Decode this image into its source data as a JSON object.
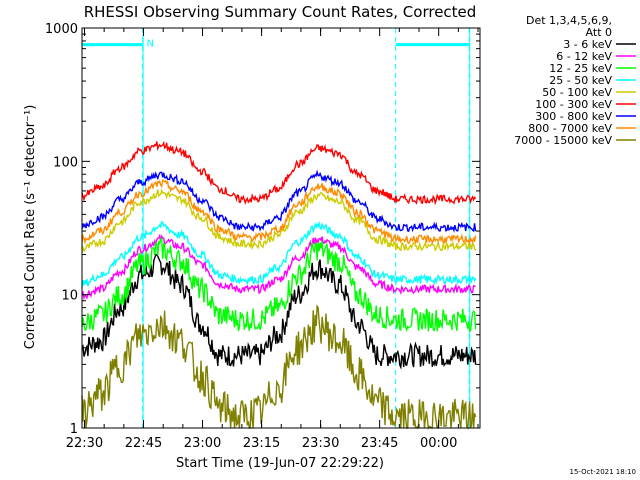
{
  "chart_data": {
    "type": "line",
    "title": "RHESSI Observing Summary Count Rates, Corrected",
    "xlabel": "Start Time (19-Jun-07 22:29:22)",
    "ylabel": "Corrected Count Rate (s⁻¹ detector⁻¹)",
    "y_scale": "log",
    "ylim": [
      1,
      1000
    ],
    "xlim": [
      "22:29:22",
      "00:10:30"
    ],
    "x_tick_labels": [
      "22:30",
      "22:45",
      "23:00",
      "23:15",
      "23:30",
      "23:45",
      "00:00"
    ],
    "x_tick_minutes": [
      0.63,
      15.63,
      30.63,
      45.63,
      60.63,
      75.63,
      90.63
    ],
    "y_tick_labels": [
      "1",
      "10",
      "100",
      "1000"
    ],
    "y_tick_values": [
      1,
      10,
      100,
      1000
    ],
    "legend_header": [
      "Det 1,3,4,5,6,9,",
      "Att 0"
    ],
    "legend_position": "right",
    "time_step_min": 5,
    "series": [
      {
        "name": "3 - 6 keV",
        "color": "#000000",
        "times": [
          0,
          5,
          10,
          15,
          20,
          25,
          30,
          35,
          40,
          45,
          50,
          55,
          60,
          65,
          70,
          75,
          80,
          85,
          90,
          95,
          100
        ],
        "values": [
          4,
          4.5,
          8,
          14,
          17,
          12,
          6,
          3.5,
          3.5,
          3.5,
          5,
          10,
          16,
          12,
          6,
          3.5,
          3.5,
          3.5,
          3.5,
          3.5,
          3.5
        ]
      },
      {
        "name": "6 - 12 keV",
        "color": "#ff00ff",
        "times": [
          0,
          5,
          10,
          15,
          20,
          25,
          30,
          35,
          40,
          45,
          50,
          55,
          60,
          65,
          70,
          75,
          80,
          85,
          90,
          95,
          100
        ],
        "values": [
          10,
          11,
          15,
          22,
          26,
          23,
          17,
          12,
          11,
          11,
          13,
          19,
          26,
          23,
          16,
          12,
          11,
          11,
          11,
          11,
          11
        ]
      },
      {
        "name": "12 - 25 keV",
        "color": "#00ff00",
        "times": [
          0,
          5,
          10,
          15,
          20,
          25,
          30,
          35,
          40,
          45,
          50,
          55,
          60,
          65,
          70,
          75,
          80,
          85,
          90,
          95,
          100
        ],
        "values": [
          6,
          7,
          10,
          17,
          22,
          18,
          11,
          7,
          6.5,
          6.5,
          8,
          14,
          22,
          18,
          10,
          7,
          6.5,
          6.5,
          6.5,
          6.5,
          6.5
        ]
      },
      {
        "name": "25 - 50 keV",
        "color": "#00ffff",
        "times": [
          0,
          5,
          10,
          15,
          20,
          25,
          30,
          35,
          40,
          45,
          50,
          55,
          60,
          65,
          70,
          75,
          80,
          85,
          90,
          95,
          100
        ],
        "values": [
          12,
          14,
          19,
          27,
          33,
          28,
          20,
          14,
          13,
          13,
          16,
          25,
          33,
          28,
          19,
          14,
          13,
          13,
          13,
          13,
          13
        ]
      },
      {
        "name": "50 - 100 keV",
        "color": "#cccc00",
        "times": [
          0,
          5,
          10,
          15,
          20,
          25,
          30,
          35,
          40,
          45,
          50,
          55,
          60,
          65,
          70,
          75,
          80,
          85,
          90,
          95,
          100
        ],
        "values": [
          22,
          25,
          35,
          50,
          58,
          52,
          38,
          27,
          24,
          24,
          28,
          42,
          55,
          50,
          36,
          26,
          23,
          23,
          23,
          23,
          23
        ]
      },
      {
        "name": "100 - 300 keV",
        "color": "#ff0000",
        "times": [
          0,
          5,
          10,
          15,
          20,
          25,
          30,
          35,
          40,
          45,
          50,
          55,
          60,
          65,
          70,
          75,
          80,
          85,
          90,
          95,
          100
        ],
        "values": [
          55,
          64,
          90,
          120,
          133,
          118,
          85,
          62,
          52,
          52,
          62,
          95,
          125,
          115,
          80,
          60,
          52,
          52,
          52,
          52,
          52
        ]
      },
      {
        "name": "300 - 800 keV",
        "color": "#0000ff",
        "times": [
          0,
          5,
          10,
          15,
          20,
          25,
          30,
          35,
          40,
          45,
          50,
          55,
          60,
          65,
          70,
          75,
          80,
          85,
          90,
          95,
          100
        ],
        "values": [
          33,
          38,
          52,
          70,
          80,
          72,
          52,
          38,
          32,
          32,
          38,
          58,
          78,
          70,
          50,
          37,
          32,
          32,
          32,
          32,
          32
        ]
      },
      {
        "name": "800 - 7000 keV",
        "color": "#ff8c00",
        "times": [
          0,
          5,
          10,
          15,
          20,
          25,
          30,
          35,
          40,
          45,
          50,
          55,
          60,
          65,
          70,
          75,
          80,
          85,
          90,
          95,
          100
        ],
        "values": [
          26,
          30,
          42,
          58,
          68,
          60,
          43,
          31,
          27,
          27,
          31,
          48,
          65,
          58,
          41,
          30,
          26,
          26,
          26,
          26,
          26
        ]
      },
      {
        "name": "7000 - 15000 keV",
        "color": "#808000",
        "times": [
          0,
          5,
          10,
          15,
          20,
          25,
          30,
          35,
          40,
          45,
          50,
          55,
          60,
          65,
          70,
          75,
          80,
          85,
          90,
          95,
          100
        ],
        "values": [
          1.3,
          1.8,
          3,
          5,
          6,
          4.5,
          2.5,
          1.4,
          1.2,
          1.3,
          2,
          4,
          6,
          4.5,
          2.5,
          1.5,
          1.2,
          1.2,
          1.2,
          1.2,
          1.2
        ]
      }
    ],
    "annotations": {
      "night_bars": [
        {
          "label": "N",
          "start_min": 0,
          "end_min": 15.4,
          "level": 750
        },
        {
          "label": "",
          "start_min": 79.7,
          "end_min": 98.4,
          "level": 750
        }
      ],
      "vertical_markers_min": [
        15.4,
        79.7,
        98.4
      ]
    },
    "timestamp": "15-Oct-2021 18:10"
  }
}
